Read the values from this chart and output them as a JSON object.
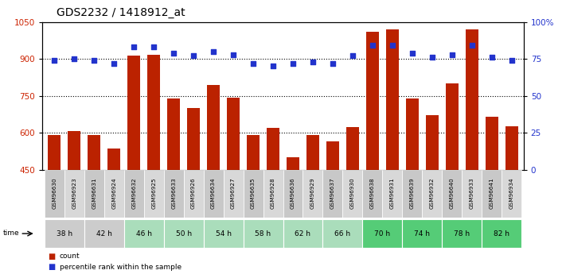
{
  "title": "GDS2232 / 1418912_at",
  "samples": [
    "GSM96630",
    "GSM96923",
    "GSM96631",
    "GSM96924",
    "GSM96632",
    "GSM96925",
    "GSM96633",
    "GSM96926",
    "GSM96634",
    "GSM96927",
    "GSM96635",
    "GSM96928",
    "GSM96636",
    "GSM96929",
    "GSM96637",
    "GSM96930",
    "GSM96638",
    "GSM96931",
    "GSM96639",
    "GSM96932",
    "GSM96640",
    "GSM96933",
    "GSM96641",
    "GSM96934"
  ],
  "counts": [
    592,
    607,
    590,
    537,
    912,
    916,
    740,
    700,
    793,
    742,
    590,
    620,
    500,
    590,
    566,
    623,
    1010,
    1020,
    738,
    672,
    800,
    1020,
    665,
    627
  ],
  "percentiles": [
    74,
    75,
    74,
    72,
    83,
    83,
    79,
    77,
    80,
    78,
    72,
    70,
    72,
    73,
    72,
    77,
    84,
    84,
    79,
    76,
    78,
    84,
    76,
    74
  ],
  "time_groups": [
    {
      "label": "38 h",
      "start": 0,
      "end": 2,
      "color": "#cccccc"
    },
    {
      "label": "42 h",
      "start": 2,
      "end": 4,
      "color": "#cccccc"
    },
    {
      "label": "46 h",
      "start": 4,
      "end": 6,
      "color": "#aaddbb"
    },
    {
      "label": "50 h",
      "start": 6,
      "end": 8,
      "color": "#aaddbb"
    },
    {
      "label": "54 h",
      "start": 8,
      "end": 10,
      "color": "#aaddbb"
    },
    {
      "label": "58 h",
      "start": 10,
      "end": 12,
      "color": "#aaddbb"
    },
    {
      "label": "62 h",
      "start": 12,
      "end": 14,
      "color": "#aaddbb"
    },
    {
      "label": "66 h",
      "start": 14,
      "end": 16,
      "color": "#aaddbb"
    },
    {
      "label": "70 h",
      "start": 16,
      "end": 18,
      "color": "#55cc77"
    },
    {
      "label": "74 h",
      "start": 18,
      "end": 20,
      "color": "#55cc77"
    },
    {
      "label": "78 h",
      "start": 20,
      "end": 22,
      "color": "#55cc77"
    },
    {
      "label": "82 h",
      "start": 22,
      "end": 24,
      "color": "#55cc77"
    }
  ],
  "bar_color": "#bb2200",
  "dot_color": "#2233cc",
  "ylim_left": [
    450,
    1050
  ],
  "ylim_right": [
    0,
    100
  ],
  "yticks_left": [
    450,
    600,
    750,
    900,
    1050
  ],
  "yticks_right": [
    0,
    25,
    50,
    75,
    100
  ],
  "grid_values": [
    600,
    750,
    900
  ],
  "title_fontsize": 10,
  "axis_label_color_left": "#cc2200",
  "axis_label_color_right": "#2233cc",
  "sample_bg_even": "#c8c8c8",
  "sample_bg_odd": "#d8d8d8"
}
